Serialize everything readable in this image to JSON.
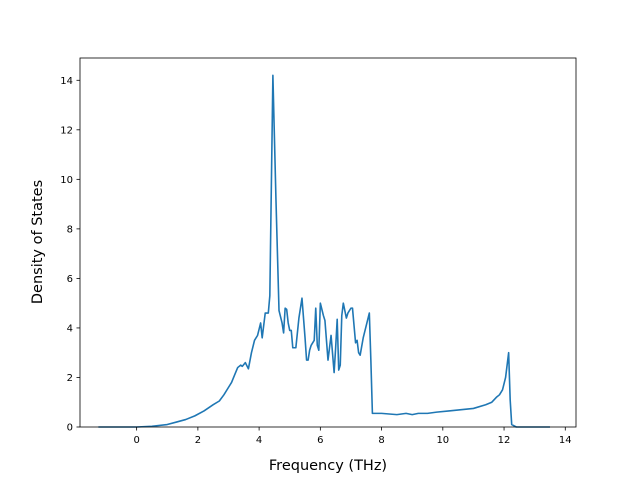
{
  "chart_data": {
    "type": "line",
    "title": "",
    "xlabel": "Frequency (THz)",
    "ylabel": "Density of States",
    "xlim": [
      -1.85,
      14.35
    ],
    "ylim": [
      0,
      14.9
    ],
    "xticks": [
      0,
      2,
      4,
      6,
      8,
      10,
      12,
      14
    ],
    "yticks": [
      0,
      2,
      4,
      6,
      8,
      10,
      12,
      14
    ],
    "grid": false,
    "legend": "none",
    "series": [
      {
        "color": "#1f77b4",
        "x": [
          -1.25,
          -0.5,
          0.0,
          0.5,
          1.0,
          1.3,
          1.6,
          1.9,
          2.2,
          2.5,
          2.7,
          2.85,
          3.0,
          3.1,
          3.2,
          3.3,
          3.4,
          3.45,
          3.55,
          3.65,
          3.75,
          3.85,
          3.95,
          4.05,
          4.1,
          4.2,
          4.3,
          4.35,
          4.45,
          4.55,
          4.65,
          4.75,
          4.8,
          4.85,
          4.9,
          4.95,
          5.0,
          5.05,
          5.1,
          5.2,
          5.3,
          5.4,
          5.5,
          5.55,
          5.6,
          5.65,
          5.7,
          5.8,
          5.85,
          5.9,
          5.95,
          6.0,
          6.1,
          6.15,
          6.25,
          6.35,
          6.45,
          6.5,
          6.55,
          6.6,
          6.65,
          6.7,
          6.75,
          6.85,
          6.9,
          7.0,
          7.05,
          7.1,
          7.15,
          7.2,
          7.25,
          7.3,
          7.4,
          7.5,
          7.6,
          7.65,
          7.7,
          7.8,
          8.0,
          8.5,
          8.8,
          9.0,
          9.2,
          9.5,
          9.8,
          10.2,
          10.6,
          11.0,
          11.4,
          11.6,
          11.75,
          11.85,
          11.95,
          12.05,
          12.1,
          12.15,
          12.2,
          12.25,
          12.4,
          13.0,
          13.5
        ],
        "y": [
          0.0,
          0.0,
          0.0,
          0.03,
          0.1,
          0.2,
          0.3,
          0.45,
          0.65,
          0.9,
          1.05,
          1.3,
          1.6,
          1.8,
          2.1,
          2.4,
          2.5,
          2.45,
          2.6,
          2.35,
          3.0,
          3.5,
          3.7,
          4.2,
          3.6,
          4.6,
          4.6,
          5.3,
          14.2,
          9.2,
          4.7,
          4.2,
          3.8,
          4.8,
          4.75,
          4.2,
          3.9,
          3.9,
          3.2,
          3.2,
          4.4,
          5.2,
          3.6,
          2.7,
          2.7,
          3.1,
          3.3,
          3.5,
          4.8,
          3.3,
          3.1,
          5.0,
          4.5,
          4.3,
          2.7,
          3.7,
          2.2,
          3.2,
          4.35,
          2.3,
          2.5,
          4.5,
          5.0,
          4.4,
          4.6,
          4.8,
          4.8,
          4.1,
          3.4,
          3.5,
          3.0,
          2.9,
          3.6,
          4.1,
          4.6,
          2.7,
          0.55,
          0.55,
          0.55,
          0.5,
          0.55,
          0.5,
          0.55,
          0.55,
          0.6,
          0.65,
          0.7,
          0.75,
          0.9,
          1.0,
          1.2,
          1.3,
          1.5,
          2.0,
          2.5,
          3.0,
          1.1,
          0.1,
          0.0,
          0.0,
          0.0
        ]
      }
    ]
  }
}
